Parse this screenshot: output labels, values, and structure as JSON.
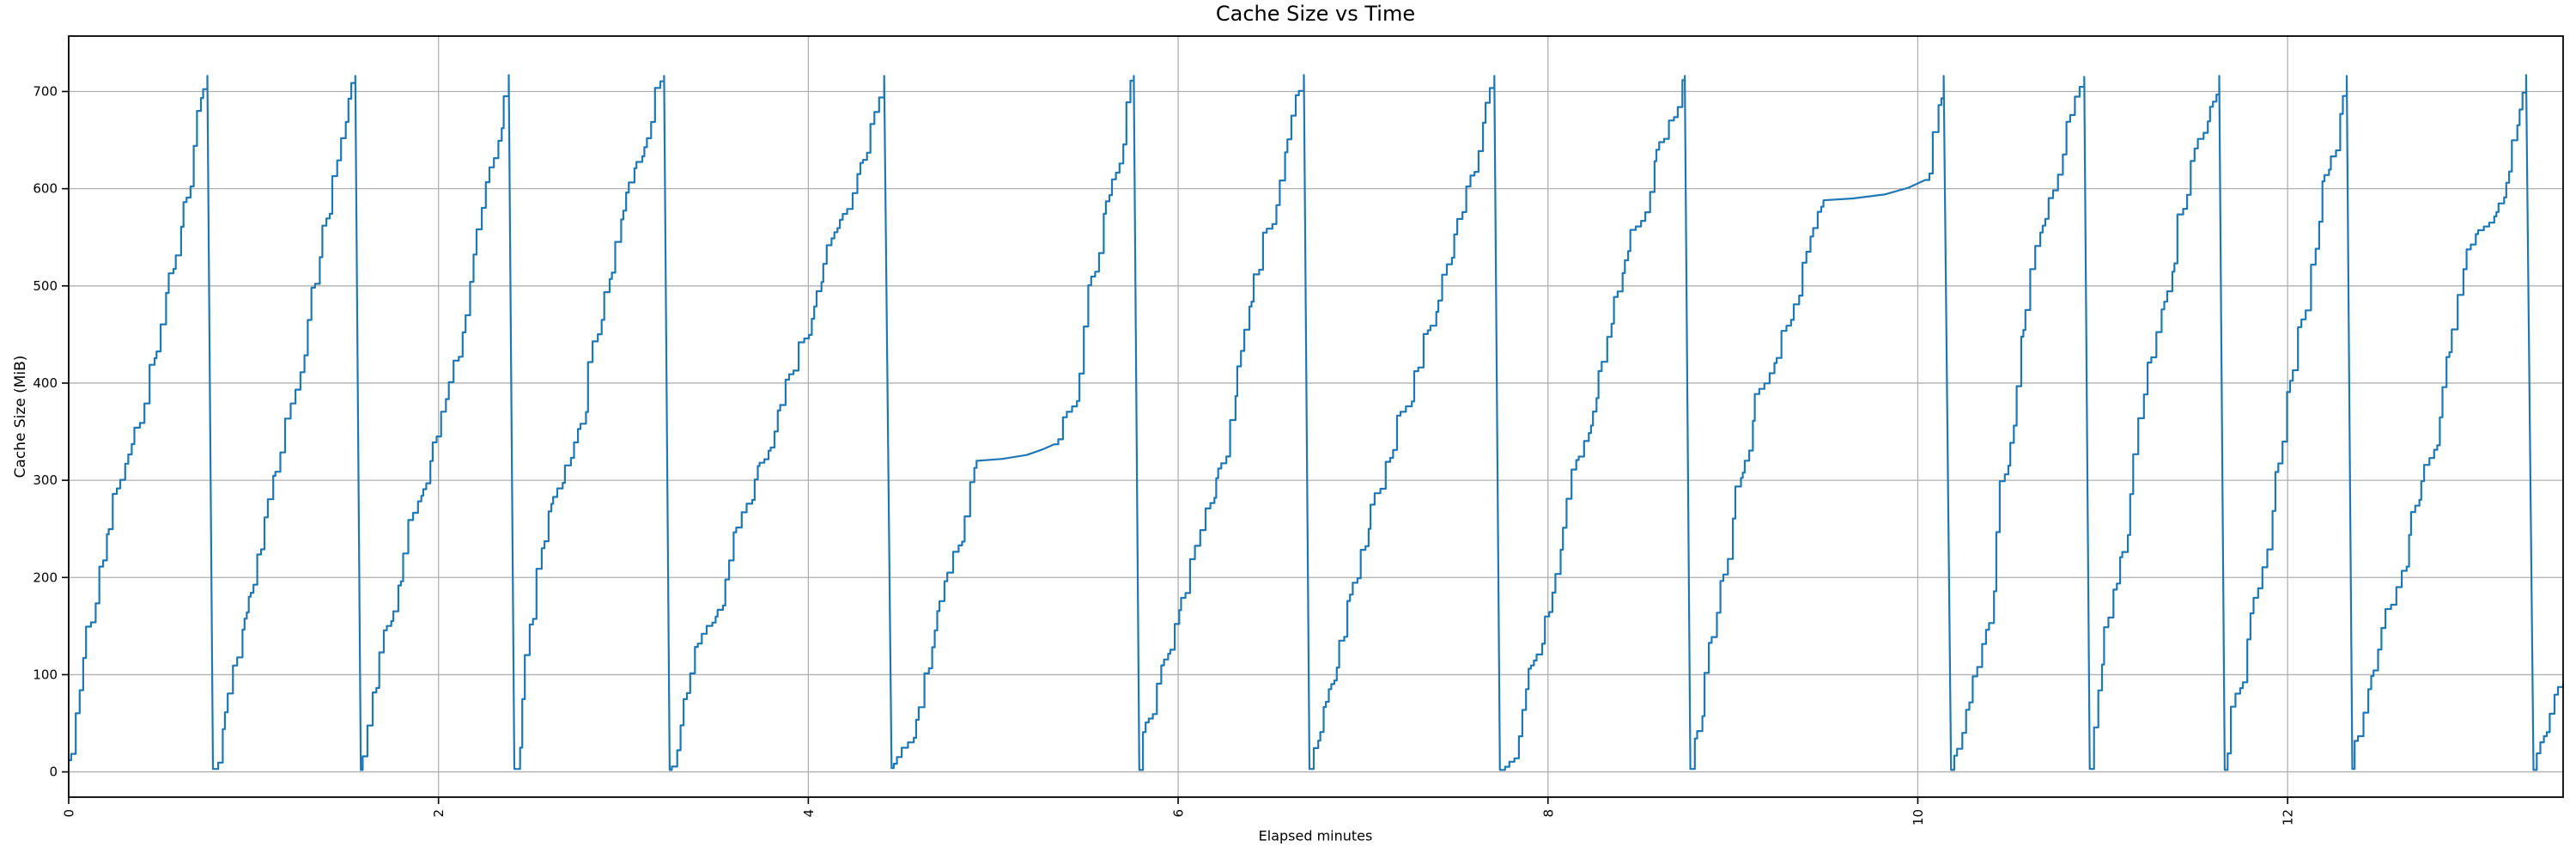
{
  "page": {
    "background": "#ffffff"
  },
  "chart_data": {
    "type": "line",
    "title": "Cache Size vs Time",
    "xlabel": "Elapsed minutes",
    "ylabel": "Cache Size (MiB)",
    "x_ticks": [
      0,
      2,
      4,
      6,
      8,
      10,
      12
    ],
    "x_tick_labels": [
      "0",
      "2",
      "4",
      "6",
      "8",
      "10",
      "12"
    ],
    "y_ticks": [
      0,
      100,
      200,
      300,
      400,
      500,
      600,
      700
    ],
    "y_tick_labels": [
      "0",
      "100",
      "200",
      "300",
      "400",
      "500",
      "600",
      "700"
    ],
    "xlim": [
      0,
      13.49
    ],
    "ylim": [
      -26,
      757
    ],
    "grid": true,
    "legend": null,
    "colors": {
      "line": "#1f77b4",
      "grid": "#b0b0b0",
      "spine": "#000000",
      "text": "#000000",
      "background": "#ffffff"
    },
    "series": [
      {
        "name": "cache_size_mib",
        "peak_value": 716,
        "trough_value": 2,
        "segments": [
          {
            "mode": "stair",
            "points": [
              [
                0.0,
                12
              ],
              [
                0.75,
                716
              ]
            ]
          },
          {
            "mode": "drop",
            "points": [
              [
                0.75,
                716
              ],
              [
                0.78,
                3
              ]
            ]
          },
          {
            "mode": "stair",
            "points": [
              [
                0.78,
                3
              ],
              [
                1.55,
                716
              ]
            ]
          },
          {
            "mode": "drop",
            "points": [
              [
                1.55,
                716
              ],
              [
                1.58,
                2
              ]
            ]
          },
          {
            "mode": "stair",
            "points": [
              [
                1.58,
                2
              ],
              [
                2.38,
                717
              ]
            ]
          },
          {
            "mode": "drop",
            "points": [
              [
                2.38,
                717
              ],
              [
                2.41,
                3
              ]
            ]
          },
          {
            "mode": "stair",
            "points": [
              [
                2.41,
                3
              ],
              [
                3.22,
                716
              ]
            ]
          },
          {
            "mode": "drop",
            "points": [
              [
                3.22,
                716
              ],
              [
                3.25,
                2
              ]
            ]
          },
          {
            "mode": "stair",
            "points": [
              [
                3.25,
                2
              ],
              [
                4.41,
                716
              ]
            ]
          },
          {
            "mode": "drop",
            "points": [
              [
                4.41,
                716
              ],
              [
                4.45,
                4
              ]
            ]
          },
          {
            "mode": "stair",
            "points": [
              [
                4.45,
                4
              ],
              [
                4.91,
                320
              ]
            ]
          },
          {
            "mode": "line",
            "points": [
              [
                4.91,
                320
              ],
              [
                5.05,
                322
              ],
              [
                5.18,
                326
              ],
              [
                5.27,
                332
              ],
              [
                5.33,
                337
              ]
            ]
          },
          {
            "mode": "stair",
            "points": [
              [
                5.33,
                337
              ],
              [
                5.76,
                716
              ]
            ]
          },
          {
            "mode": "drop",
            "points": [
              [
                5.76,
                716
              ],
              [
                5.79,
                2
              ]
            ]
          },
          {
            "mode": "stair",
            "points": [
              [
                5.79,
                2
              ],
              [
                6.68,
                717
              ]
            ]
          },
          {
            "mode": "drop",
            "points": [
              [
                6.68,
                717
              ],
              [
                6.71,
                3
              ]
            ]
          },
          {
            "mode": "stair",
            "points": [
              [
                6.71,
                3
              ],
              [
                7.71,
                716
              ]
            ]
          },
          {
            "mode": "drop",
            "points": [
              [
                7.71,
                716
              ],
              [
                7.74,
                2
              ]
            ]
          },
          {
            "mode": "stair",
            "points": [
              [
                7.74,
                2
              ],
              [
                8.74,
                716
              ]
            ]
          },
          {
            "mode": "drop",
            "points": [
              [
                8.74,
                716
              ],
              [
                8.77,
                3
              ]
            ]
          },
          {
            "mode": "stair",
            "points": [
              [
                8.77,
                3
              ],
              [
                9.49,
                588
              ]
            ]
          },
          {
            "mode": "line",
            "points": [
              [
                9.49,
                588
              ],
              [
                9.65,
                590
              ],
              [
                9.82,
                594
              ],
              [
                9.95,
                601
              ],
              [
                10.04,
                609
              ]
            ]
          },
          {
            "mode": "stair",
            "points": [
              [
                10.04,
                609
              ],
              [
                10.14,
                716
              ]
            ]
          },
          {
            "mode": "drop",
            "points": [
              [
                10.14,
                716
              ],
              [
                10.18,
                2
              ]
            ]
          },
          {
            "mode": "stair",
            "points": [
              [
                10.18,
                2
              ],
              [
                10.9,
                715
              ]
            ]
          },
          {
            "mode": "drop",
            "points": [
              [
                10.9,
                715
              ],
              [
                10.93,
                3
              ]
            ]
          },
          {
            "mode": "stair",
            "points": [
              [
                10.93,
                3
              ],
              [
                11.63,
                716
              ]
            ]
          },
          {
            "mode": "drop",
            "points": [
              [
                11.63,
                716
              ],
              [
                11.66,
                2
              ]
            ]
          },
          {
            "mode": "stair",
            "points": [
              [
                11.66,
                2
              ],
              [
                12.32,
                716
              ]
            ]
          },
          {
            "mode": "drop",
            "points": [
              [
                12.32,
                716
              ],
              [
                12.35,
                3
              ]
            ]
          },
          {
            "mode": "stair",
            "points": [
              [
                12.35,
                3
              ],
              [
                13.29,
                717
              ]
            ]
          },
          {
            "mode": "drop",
            "points": [
              [
                13.29,
                717
              ],
              [
                13.33,
                2
              ]
            ]
          },
          {
            "mode": "stair",
            "points": [
              [
                13.33,
                2
              ],
              [
                13.49,
                90
              ]
            ]
          }
        ]
      }
    ]
  }
}
